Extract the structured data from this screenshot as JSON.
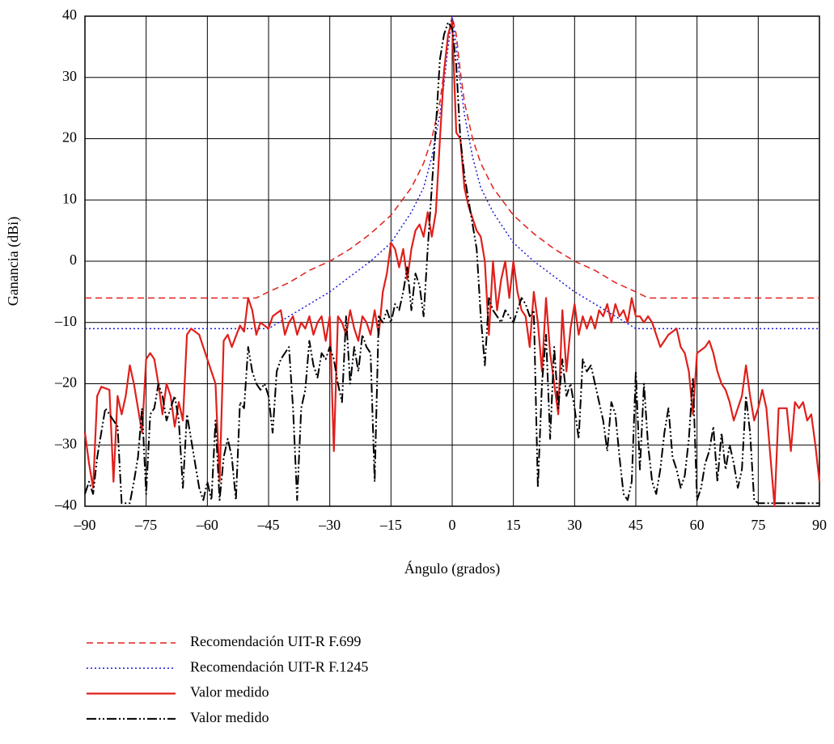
{
  "chart_data": {
    "type": "line",
    "x_label": "Ángulo (grados)",
    "y_label": "Ganancia (dBi)",
    "xlim": [
      -90,
      90
    ],
    "ylim": [
      -40,
      40
    ],
    "xticks": [
      {
        "value": -90,
        "label": "–90"
      },
      {
        "value": -75,
        "label": "–75"
      },
      {
        "value": -60,
        "label": "–60"
      },
      {
        "value": -45,
        "label": "–45"
      },
      {
        "value": -30,
        "label": "–30"
      },
      {
        "value": -15,
        "label": "–15"
      },
      0,
      15,
      30,
      45,
      60,
      75,
      90
    ],
    "yticks": [
      {
        "value": -40,
        "label": "–40"
      },
      {
        "value": -30,
        "label": "–30"
      },
      {
        "value": -20,
        "label": "–20"
      },
      {
        "value": -10,
        "label": "–10"
      },
      0,
      10,
      20,
      30,
      40
    ],
    "grid": true,
    "legend": "bottom",
    "series": [
      {
        "name": "Recomendación UIT-R F.699",
        "color": "#e0201b",
        "line_style": "dashed",
        "x": [
          -90,
          -48,
          -45,
          -40,
          -35,
          -30,
          -25,
          -20,
          -15,
          -10,
          -7,
          -5,
          -3,
          -2,
          -1,
          0,
          1,
          2,
          3,
          5,
          7,
          10,
          15,
          20,
          25,
          30,
          35,
          40,
          45,
          48,
          90
        ],
        "values": [
          -6,
          -6,
          -5,
          -3.5,
          -1.5,
          0,
          2,
          4.5,
          7.5,
          12,
          16,
          20,
          26,
          31,
          37,
          40,
          37,
          31,
          26,
          20,
          16,
          12,
          7.5,
          4.5,
          2,
          0,
          -1.5,
          -3.5,
          -5,
          -6,
          -6
        ]
      },
      {
        "name": "Recomendación UIT-R F.1245",
        "color": "#1a1adb",
        "line_style": "dotted",
        "x": [
          -90,
          -45,
          -40,
          -35,
          -30,
          -25,
          -20,
          -15,
          -10,
          -7,
          -5,
          -3,
          -2,
          -1,
          0,
          1,
          2,
          3,
          5,
          7,
          10,
          15,
          20,
          25,
          30,
          35,
          40,
          45,
          90
        ],
        "values": [
          -11,
          -11,
          -9,
          -7,
          -5,
          -2.5,
          0,
          3,
          8,
          12,
          17,
          24,
          29,
          35,
          40,
          35,
          29,
          24,
          17,
          12,
          8,
          3,
          0,
          -2.5,
          -5,
          -7,
          -9,
          -11,
          -11
        ]
      },
      {
        "name": "Valor medido",
        "color": "#e0201b",
        "line_style": "solid",
        "x": [
          -90,
          -89,
          -88,
          -87,
          -86,
          -84,
          -83,
          -82,
          -81,
          -80,
          -79,
          -78,
          -77,
          -76,
          -75,
          -74,
          -73,
          -72,
          -71,
          -70,
          -69,
          -68,
          -67,
          -66,
          -65,
          -64,
          -62,
          -60,
          -58,
          -57,
          -56,
          -55,
          -54,
          -52,
          -51,
          -50,
          -49,
          -48,
          -47,
          -45,
          -44,
          -42,
          -41,
          -40,
          -39,
          -38,
          -37,
          -36,
          -35,
          -34,
          -33,
          -32,
          -31,
          -30,
          -29,
          -28,
          -27,
          -26,
          -25,
          -24,
          -23,
          -22,
          -21,
          -20,
          -19,
          -18,
          -17,
          -16,
          -15,
          -14,
          -13,
          -12,
          -11,
          -10,
          -9,
          -8,
          -7,
          -6,
          -5,
          -4,
          -3,
          -2,
          -1,
          0,
          1,
          2,
          3,
          4,
          5,
          6,
          7,
          8,
          9,
          10,
          11,
          12,
          13,
          14,
          15,
          16,
          17,
          18,
          19,
          20,
          21,
          22,
          23,
          24,
          25,
          26,
          27,
          28,
          29,
          30,
          31,
          32,
          33,
          34,
          35,
          36,
          37,
          38,
          39,
          40,
          41,
          42,
          43,
          44,
          45,
          46,
          47,
          48,
          49,
          50,
          51,
          52,
          53,
          55,
          56,
          57,
          58,
          59,
          60,
          61,
          62,
          63,
          64,
          65,
          66,
          67,
          68,
          69,
          70,
          71,
          72,
          73,
          74,
          75,
          76,
          77,
          78,
          79,
          80,
          81,
          82,
          83,
          84,
          85,
          86,
          87,
          88,
          89,
          90
        ],
        "values": [
          -28,
          -33,
          -37,
          -22,
          -20.5,
          -21,
          -36,
          -22,
          -25,
          -22,
          -17,
          -20,
          -24,
          -28,
          -16,
          -15,
          -16,
          -20,
          -25,
          -20,
          -22,
          -27,
          -23,
          -26,
          -12,
          -11,
          -12,
          -16,
          -20,
          -36,
          -13,
          -12,
          -14,
          -10.5,
          -11.5,
          -6,
          -8,
          -12,
          -10,
          -11,
          -9,
          -8,
          -12,
          -10,
          -9,
          -12,
          -10,
          -11,
          -9,
          -12,
          -10,
          -9,
          -13,
          -9,
          -31,
          -9,
          -10,
          -12,
          -8,
          -11,
          -13,
          -9,
          -10,
          -12,
          -8,
          -12,
          -5,
          -2,
          3,
          2,
          -1,
          2,
          -3,
          2,
          5,
          6,
          4,
          8,
          4,
          8,
          20,
          31,
          37,
          39,
          21,
          20,
          12,
          9,
          7,
          5,
          4,
          0,
          -12,
          0,
          -8,
          -3,
          0,
          -6,
          0,
          -5,
          -8,
          -9,
          -14,
          -5,
          -10,
          -18,
          -6,
          -15,
          -20,
          -25,
          -8,
          -18,
          -11,
          -7,
          -12,
          -9,
          -11,
          -9,
          -11,
          -8,
          -9,
          -7,
          -10,
          -7,
          -9,
          -8,
          -10,
          -6,
          -9,
          -9,
          -10,
          -9,
          -10,
          -12,
          -14,
          -13,
          -12,
          -11,
          -14,
          -15,
          -18,
          -25,
          -15,
          -14.5,
          -14,
          -13,
          -15,
          -18,
          -20,
          -21,
          -23,
          -26,
          -24,
          -22,
          -17,
          -22,
          -26,
          -24,
          -21,
          -24,
          -32,
          -40,
          -24,
          -24,
          -24,
          -31,
          -23,
          -24,
          -23,
          -26,
          -25,
          -30,
          -36
        ]
      },
      {
        "name": "Valor medido",
        "color": "#000000",
        "line_style": "dashdotdot",
        "x": [
          -90,
          -89,
          -88,
          -87,
          -86,
          -85,
          -84,
          -83,
          -82,
          -81,
          -80,
          -79,
          -78,
          -77,
          -76,
          -75,
          -74,
          -73,
          -72,
          -71,
          -70,
          -69,
          -68,
          -67,
          -66,
          -65,
          -64,
          -63,
          -62,
          -61,
          -60,
          -59,
          -58,
          -57,
          -56,
          -55,
          -54,
          -53,
          -52,
          -51,
          -50,
          -49,
          -48,
          -47,
          -46,
          -45,
          -44,
          -43,
          -42,
          -41,
          -40,
          -39,
          -38,
          -37,
          -36,
          -35,
          -34,
          -33,
          -32,
          -31,
          -30,
          -29,
          -28,
          -27,
          -26,
          -25,
          -24,
          -23,
          -22,
          -21,
          -20,
          -19,
          -18,
          -17,
          -16,
          -15,
          -14,
          -13,
          -12,
          -11,
          -10,
          -9,
          -8,
          -7,
          -6,
          -5,
          -4,
          -3,
          -2,
          -1,
          0,
          1,
          2,
          3,
          4,
          5,
          6,
          7,
          8,
          9,
          10,
          11,
          12,
          13,
          14,
          15,
          16,
          17,
          18,
          19,
          20,
          21,
          22,
          23,
          24,
          25,
          26,
          27,
          28,
          29,
          30,
          31,
          32,
          33,
          34,
          35,
          36,
          37,
          38,
          39,
          40,
          41,
          42,
          43,
          44,
          45,
          46,
          47,
          48,
          49,
          50,
          51,
          52,
          53,
          54,
          55,
          56,
          57,
          58,
          59,
          60,
          61,
          62,
          63,
          64,
          65,
          66,
          67,
          68,
          69,
          70,
          71,
          72,
          73,
          74,
          75,
          90
        ],
        "values": [
          -38,
          -36,
          -38,
          -32,
          -28,
          -24,
          -25,
          -26,
          -27,
          -39.5,
          -39.5,
          -39.5,
          -36,
          -32,
          -24,
          -38,
          -25,
          -24,
          -20,
          -22,
          -26,
          -24,
          -22,
          -26,
          -37,
          -25,
          -29,
          -33,
          -37,
          -39,
          -36,
          -39,
          -26,
          -39,
          -32,
          -29,
          -32,
          -39,
          -23,
          -24,
          -14,
          -18,
          -20,
          -21,
          -20,
          -22,
          -28,
          -18,
          -16,
          -15,
          -14,
          -24,
          -39,
          -24,
          -21,
          -13,
          -17,
          -19,
          -15,
          -16,
          -14,
          -16,
          -20,
          -23,
          -9,
          -20,
          -14,
          -18,
          -12,
          -14,
          -15,
          -36,
          -9,
          -10,
          -8,
          -10,
          -7,
          -8,
          -5,
          -1,
          -8,
          -2,
          -4,
          -9,
          2,
          12,
          22,
          33,
          37,
          39,
          38,
          32,
          20,
          14,
          10,
          6,
          2,
          -9,
          -17,
          -6,
          -8,
          -9,
          -10,
          -8,
          -9,
          -10,
          -8,
          -6,
          -7,
          -9,
          -8,
          -37,
          -20,
          -12,
          -29,
          -14,
          -24,
          -16,
          -22,
          -20,
          -24,
          -29,
          -16,
          -18,
          -17,
          -20,
          -23,
          -26,
          -31,
          -23,
          -25,
          -32,
          -38,
          -39,
          -36,
          -18,
          -34,
          -20,
          -30,
          -36,
          -38,
          -34,
          -28,
          -24,
          -32,
          -34,
          -37,
          -35,
          -29,
          -19,
          -39,
          -37,
          -33,
          -31,
          -27,
          -36,
          -28,
          -34,
          -30,
          -33,
          -37,
          -34,
          -22,
          -28,
          -39,
          -39.5,
          -39.5
        ]
      }
    ]
  }
}
